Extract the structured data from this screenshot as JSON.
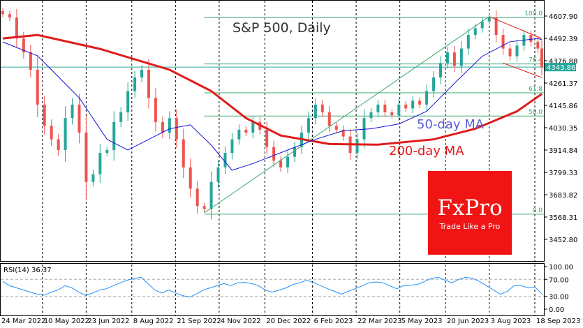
{
  "chart_data": {
    "type": "candlestick",
    "title": "S&P 500, Daily",
    "annotations": {
      "ma50": "50-day MA",
      "ma200": "200-day MA"
    },
    "y_ticks": [
      "4607.90",
      "4492.39",
      "4376.88",
      "4261.37",
      "4145.86",
      "4030.35",
      "3914.84",
      "3799.33",
      "3683.82",
      "3568.31",
      "3452.80"
    ],
    "ylim": [
      3390,
      4650
    ],
    "current_price": "4343.86",
    "x_ticks": [
      {
        "date": "2022-03-24",
        "label": "24 Mar 2022"
      },
      {
        "date": "2022-05-10",
        "label": "10 May 2022"
      },
      {
        "date": "2022-06-23",
        "label": "23 Jun 2022"
      },
      {
        "date": "2022-08-08",
        "label": "8 Aug 2022"
      },
      {
        "date": "2022-09-21",
        "label": "21 Sep 2022"
      },
      {
        "date": "2022-11-04",
        "label": "4 Nov 2022"
      },
      {
        "date": "2022-12-20",
        "label": "20 Dec 2022"
      },
      {
        "date": "2023-02-06",
        "label": "6 Feb 2023"
      },
      {
        "date": "2023-03-22",
        "label": "22 Mar 2023"
      },
      {
        "date": "2023-05-05",
        "label": "5 May 2023"
      },
      {
        "date": "2023-06-20",
        "label": "20 Jun 2023"
      },
      {
        "date": "2023-08-03",
        "label": "3 Aug 2023"
      },
      {
        "date": "2023-09-18",
        "label": "18 Sep 2023"
      }
    ],
    "dates": [
      "2022-03-24",
      "2022-03-31",
      "2022-04-07",
      "2022-04-14",
      "2022-04-21",
      "2022-04-28",
      "2022-05-05",
      "2022-05-12",
      "2022-05-19",
      "2022-05-26",
      "2022-06-02",
      "2022-06-09",
      "2022-06-16",
      "2022-06-23",
      "2022-06-30",
      "2022-07-07",
      "2022-07-14",
      "2022-07-21",
      "2022-07-28",
      "2022-08-04",
      "2022-08-11",
      "2022-08-18",
      "2022-08-25",
      "2022-09-01",
      "2022-09-08",
      "2022-09-15",
      "2022-09-22",
      "2022-09-29",
      "2022-10-06",
      "2022-10-13",
      "2022-10-20",
      "2022-10-27",
      "2022-11-03",
      "2022-11-10",
      "2022-11-17",
      "2022-11-24",
      "2022-12-01",
      "2022-12-08",
      "2022-12-15",
      "2022-12-22",
      "2022-12-29",
      "2023-01-05",
      "2023-01-12",
      "2023-01-19",
      "2023-01-26",
      "2023-02-02",
      "2023-02-09",
      "2023-02-16",
      "2023-02-23",
      "2023-03-02",
      "2023-03-09",
      "2023-03-16",
      "2023-03-23",
      "2023-03-30",
      "2023-04-06",
      "2023-04-13",
      "2023-04-20",
      "2023-04-27",
      "2023-05-04",
      "2023-05-11",
      "2023-05-18",
      "2023-05-25",
      "2023-06-01",
      "2023-06-08",
      "2023-06-15",
      "2023-06-22",
      "2023-06-29",
      "2023-07-06",
      "2023-07-13",
      "2023-07-20",
      "2023-07-27",
      "2023-08-03",
      "2023-08-10",
      "2023-08-17",
      "2023-08-24",
      "2023-08-31",
      "2023-09-07",
      "2023-09-14",
      "2023-09-18"
    ],
    "close": [
      4618,
      4600,
      4492,
      4420,
      4330,
      4150,
      4040,
      3970,
      3915,
      4080,
      4150,
      4005,
      3750,
      3790,
      3900,
      3915,
      4060,
      4110,
      4220,
      4290,
      4330,
      4185,
      4060,
      4005,
      4080,
      3970,
      3825,
      3715,
      3625,
      3610,
      3750,
      3825,
      3900,
      3970,
      4020,
      4005,
      4060,
      4020,
      3930,
      3860,
      3825,
      3880,
      3930,
      4005,
      4080,
      4150,
      4110,
      4040,
      4020,
      3985,
      3900,
      3970,
      4080,
      4110,
      4150,
      4110,
      4095,
      4150,
      4130,
      4170,
      4150,
      4220,
      4290,
      4365,
      4420,
      4350,
      4440,
      4510,
      4545,
      4580,
      4600,
      4510,
      4440,
      4400,
      4455,
      4510,
      4475,
      4440,
      4343.86
    ],
    "ma200": [
      [
        "2022-03-24",
        4492
      ],
      [
        "2022-04-28",
        4510
      ],
      [
        "2022-06-30",
        4438
      ],
      [
        "2022-09-08",
        4330
      ],
      [
        "2022-10-20",
        4220
      ],
      [
        "2022-11-24",
        4080
      ],
      [
        "2022-12-29",
        3990
      ],
      [
        "2023-02-16",
        3946
      ],
      [
        "2023-04-06",
        3943
      ],
      [
        "2023-06-01",
        3970
      ],
      [
        "2023-07-13",
        4025
      ],
      [
        "2023-08-24",
        4115
      ],
      [
        "2023-09-18",
        4205
      ]
    ],
    "ma50": [
      [
        "2022-03-24",
        4474
      ],
      [
        "2022-04-28",
        4402
      ],
      [
        "2022-05-12",
        4330
      ],
      [
        "2022-06-09",
        4185
      ],
      [
        "2022-07-07",
        3970
      ],
      [
        "2022-07-28",
        3915
      ],
      [
        "2022-08-18",
        3970
      ],
      [
        "2022-09-08",
        4025
      ],
      [
        "2022-09-29",
        4045
      ],
      [
        "2022-10-20",
        3940
      ],
      [
        "2022-11-10",
        3810
      ],
      [
        "2022-12-01",
        3845
      ],
      [
        "2023-01-05",
        3915
      ],
      [
        "2023-02-02",
        3970
      ],
      [
        "2023-03-02",
        4015
      ],
      [
        "2023-03-30",
        4025
      ],
      [
        "2023-04-27",
        4050
      ],
      [
        "2023-05-25",
        4115
      ],
      [
        "2023-06-22",
        4260
      ],
      [
        "2023-07-20",
        4400
      ],
      [
        "2023-08-17",
        4475
      ],
      [
        "2023-09-14",
        4492
      ],
      [
        "2023-09-18",
        4485
      ]
    ],
    "fibonacci": {
      "start": "2022-10-13",
      "levels": [
        {
          "label": "100.0",
          "value": 4600
        },
        {
          "label": "76.4",
          "value": 4360
        },
        {
          "label": "61.8",
          "value": 4211
        },
        {
          "label": "50.0",
          "value": 4091
        },
        {
          "label": "0.0",
          "value": 3583
        }
      ]
    },
    "trendlines": [
      {
        "color": "#3aa870",
        "from": [
          "2022-10-13",
          3590
        ],
        "to": [
          "2023-07-27",
          4605
        ]
      },
      {
        "color": "#e01b1b",
        "from": [
          "2023-07-27",
          4605
        ],
        "to": [
          "2023-09-18",
          4492
        ]
      },
      {
        "color": "#e01b1b",
        "from": [
          "2023-08-10",
          4365
        ],
        "to": [
          "2023-09-18",
          4290
        ]
      }
    ],
    "rsi": {
      "label": "RSI(14) 36.37",
      "y_ticks": [
        "100.00",
        "70.00",
        "30.00",
        "0.00"
      ],
      "levels": [
        70,
        30
      ],
      "values": [
        65,
        55,
        50,
        45,
        40,
        35,
        33,
        40,
        45,
        55,
        50,
        40,
        32,
        38,
        45,
        48,
        55,
        62,
        68,
        72,
        75,
        60,
        45,
        38,
        45,
        38,
        32,
        28,
        35,
        45,
        50,
        55,
        60,
        55,
        62,
        63,
        60,
        55,
        45,
        40,
        45,
        50,
        58,
        62,
        68,
        62,
        55,
        48,
        42,
        35,
        42,
        48,
        55,
        62,
        64,
        62,
        55,
        48,
        55,
        56,
        58,
        65,
        72,
        75,
        68,
        62,
        70,
        75,
        72,
        65,
        55,
        45,
        35,
        42,
        55,
        55,
        50,
        52,
        36.37
      ]
    },
    "colors": {
      "up": "#26a69a",
      "down": "#ef5350",
      "ma50": "#1414d8",
      "ma200": "#e01b1b",
      "rsi": "#1e90ff",
      "price_tag": "#26a69a"
    }
  },
  "logo": {
    "name": "FxPro",
    "tagline": "Trade Like a Pro",
    "color": "#f01414"
  }
}
